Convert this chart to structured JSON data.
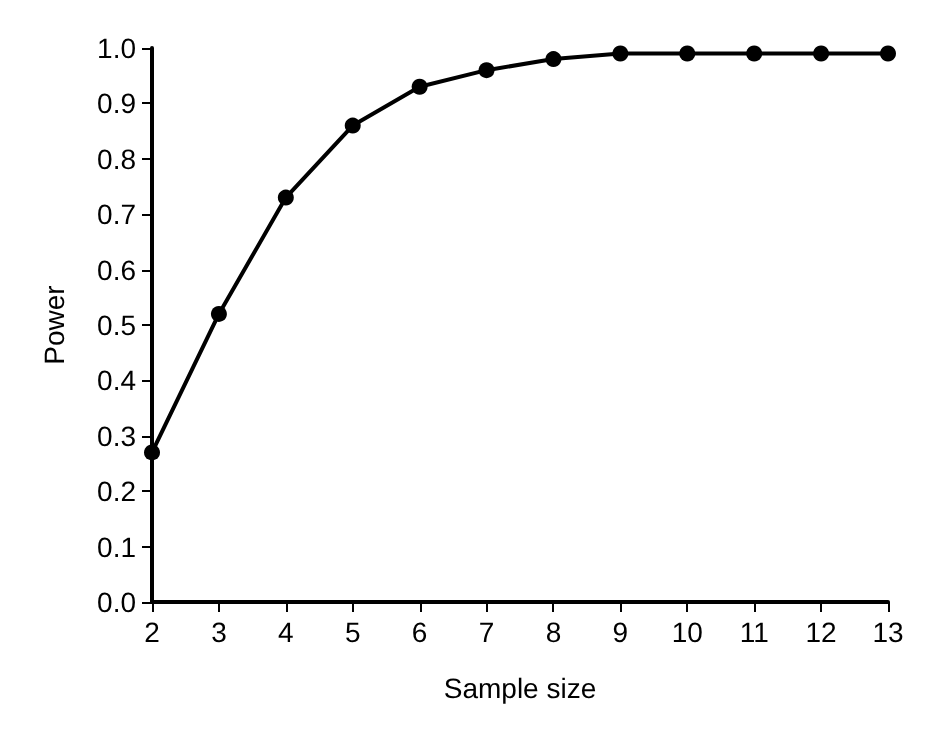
{
  "chart_data": {
    "type": "line",
    "xlabel": "Sample size",
    "ylabel": "Power",
    "x": [
      2,
      3,
      4,
      5,
      6,
      7,
      8,
      9,
      10,
      11,
      12,
      13
    ],
    "series": [
      {
        "color": "#000000",
        "values": [
          0.27,
          0.52,
          0.73,
          0.86,
          0.93,
          0.96,
          0.98,
          0.99,
          0.99,
          0.99,
          0.99,
          0.99
        ]
      }
    ],
    "xlim": [
      2,
      13
    ],
    "xticks": [
      2,
      3,
      4,
      5,
      6,
      7,
      8,
      9,
      10,
      11,
      12,
      13
    ],
    "ylim": [
      0,
      1
    ],
    "yticks": [
      {
        "value": 0,
        "label": "0.0"
      },
      0.1,
      0.2,
      0.3,
      0.4,
      0.5,
      0.6,
      0.7,
      0.8,
      0.9,
      {
        "value": 1,
        "label": "1.0"
      }
    ],
    "grid": false,
    "marker": "circle",
    "line_style": "solid"
  }
}
